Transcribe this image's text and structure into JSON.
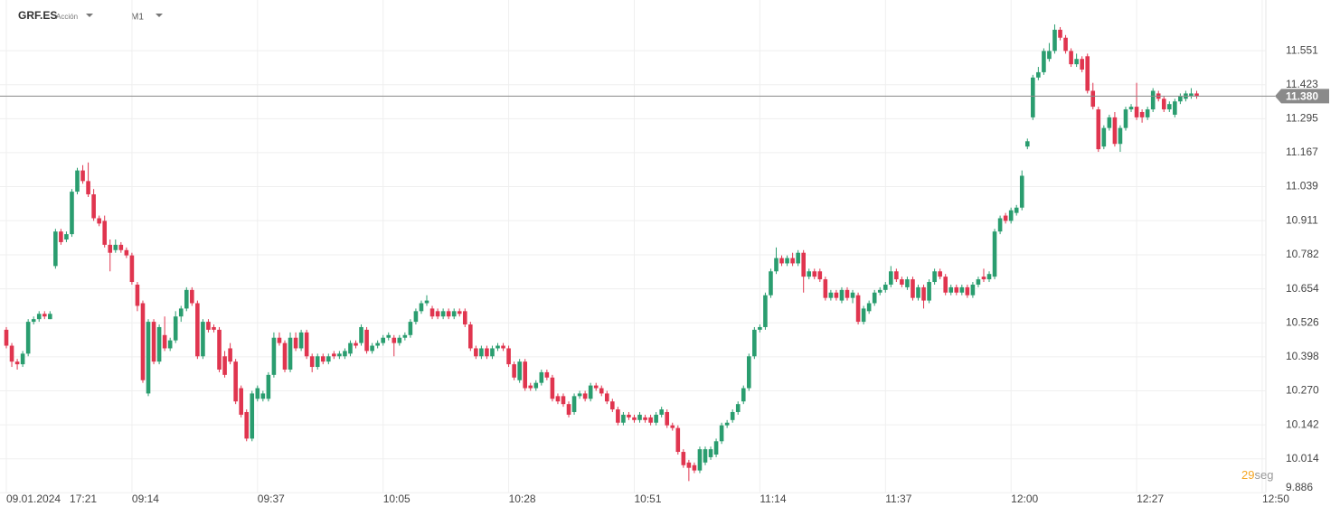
{
  "chart_data": {
    "type": "candlestick",
    "symbol": "GRF.ES",
    "instrument_type": "Acción",
    "timeframe": "M1",
    "up_color": "#2a9d6f",
    "down_color": "#e0354f",
    "grid": true,
    "ylim": [
      9.87,
      11.742
    ],
    "yticks": [
      11.551,
      11.423,
      11.295,
      11.167,
      11.039,
      10.911,
      10.782,
      10.654,
      10.526,
      10.398,
      {
        "value": 10.27,
        "label": "10.270"
      },
      10.142,
      10.014,
      9.886
    ],
    "xlim": [
      -1.16,
      231
    ],
    "xticks": [
      {
        "value": 0,
        "label": "09.01.2024   17:21"
      },
      {
        "value": 23,
        "label": "09:14"
      },
      {
        "value": 46,
        "label": "09:37"
      },
      {
        "value": 69,
        "label": "10:05"
      },
      {
        "value": 92,
        "label": "10:28"
      },
      {
        "value": 115,
        "label": "10:51"
      },
      {
        "value": 138,
        "label": "11:14"
      },
      {
        "value": 161,
        "label": "11:37"
      },
      {
        "value": 184,
        "label": "12:00"
      },
      {
        "value": 207,
        "label": "12:27"
      },
      {
        "value": 230,
        "label": "12:50"
      }
    ],
    "current_price": {
      "value": 11.38,
      "label": "11.380"
    },
    "timer": {
      "value": 29,
      "unit": "seg"
    },
    "candles": [
      [
        10.5,
        10.51,
        10.43,
        10.44
      ],
      [
        10.44,
        10.45,
        10.36,
        10.38
      ],
      [
        10.38,
        10.39,
        10.35,
        10.37
      ],
      [
        10.37,
        10.42,
        10.36,
        10.41
      ],
      [
        10.41,
        10.54,
        10.4,
        10.53
      ],
      [
        10.53,
        10.55,
        10.52,
        10.54
      ],
      [
        10.54,
        10.57,
        10.53,
        10.56
      ],
      [
        10.56,
        10.57,
        10.54,
        10.55
      ],
      [
        10.54,
        10.57,
        10.54,
        10.56
      ],
      [
        10.74,
        10.88,
        10.73,
        10.87
      ],
      [
        10.87,
        10.88,
        10.82,
        10.83
      ],
      [
        10.84,
        10.87,
        10.83,
        10.86
      ],
      [
        10.86,
        11.03,
        10.85,
        11.02
      ],
      [
        11.02,
        11.11,
        11.01,
        11.1
      ],
      [
        11.1,
        11.12,
        11.05,
        11.06
      ],
      [
        11.06,
        11.13,
        11.0,
        11.01
      ],
      [
        11.01,
        11.03,
        10.91,
        10.92
      ],
      [
        10.92,
        10.93,
        10.89,
        10.9
      ],
      [
        10.91,
        10.93,
        10.81,
        10.82
      ],
      [
        10.82,
        10.84,
        10.72,
        10.79
      ],
      [
        10.8,
        10.84,
        10.79,
        10.82
      ],
      [
        10.82,
        10.83,
        10.79,
        10.8
      ],
      [
        10.8,
        10.81,
        10.77,
        10.78
      ],
      [
        10.78,
        10.79,
        10.67,
        10.68
      ],
      [
        10.67,
        10.68,
        10.57,
        10.59
      ],
      [
        10.6,
        10.61,
        10.3,
        10.31
      ],
      [
        10.26,
        10.54,
        10.25,
        10.53
      ],
      [
        10.53,
        10.54,
        10.37,
        10.38
      ],
      [
        10.38,
        10.52,
        10.37,
        10.51
      ],
      [
        10.48,
        10.55,
        10.42,
        10.43
      ],
      [
        10.43,
        10.47,
        10.42,
        10.46
      ],
      [
        10.46,
        10.57,
        10.45,
        10.55
      ],
      [
        10.55,
        10.59,
        10.53,
        10.58
      ],
      [
        10.58,
        10.66,
        10.57,
        10.65
      ],
      [
        10.65,
        10.66,
        10.59,
        10.6
      ],
      [
        10.6,
        10.61,
        10.39,
        10.4
      ],
      [
        10.4,
        10.54,
        10.39,
        10.53
      ],
      [
        10.53,
        10.54,
        10.49,
        10.5
      ],
      [
        10.51,
        10.52,
        10.49,
        10.5
      ],
      [
        10.5,
        10.51,
        10.34,
        10.35
      ],
      [
        10.4,
        10.42,
        10.32,
        10.33
      ],
      [
        10.43,
        10.45,
        10.37,
        10.38
      ],
      [
        10.38,
        10.39,
        10.22,
        10.23
      ],
      [
        10.28,
        10.29,
        10.17,
        10.18
      ],
      [
        10.19,
        10.2,
        10.08,
        10.09
      ],
      [
        10.09,
        10.27,
        10.08,
        10.26
      ],
      [
        10.24,
        10.29,
        10.23,
        10.28
      ],
      [
        10.24,
        10.27,
        10.23,
        10.26
      ],
      [
        10.24,
        10.34,
        10.23,
        10.33
      ],
      [
        10.33,
        10.49,
        10.32,
        10.47
      ],
      [
        10.47,
        10.49,
        10.44,
        10.45
      ],
      [
        10.45,
        10.46,
        10.34,
        10.35
      ],
      [
        10.35,
        10.49,
        10.34,
        10.47
      ],
      [
        10.47,
        10.49,
        10.42,
        10.43
      ],
      [
        10.43,
        10.5,
        10.42,
        10.49
      ],
      [
        10.49,
        10.5,
        10.39,
        10.4
      ],
      [
        10.4,
        10.41,
        10.34,
        10.36
      ],
      [
        10.36,
        10.41,
        10.35,
        10.4
      ],
      [
        10.4,
        10.41,
        10.37,
        10.38
      ],
      [
        10.38,
        10.41,
        10.37,
        10.4
      ],
      [
        10.41,
        10.42,
        10.39,
        10.4
      ],
      [
        10.4,
        10.42,
        10.39,
        10.41
      ],
      [
        10.4,
        10.43,
        10.39,
        10.42
      ],
      [
        10.41,
        10.46,
        10.4,
        10.45
      ],
      [
        10.45,
        10.46,
        10.43,
        10.44
      ],
      [
        10.45,
        10.52,
        10.44,
        10.51
      ],
      [
        10.5,
        10.51,
        10.41,
        10.42
      ],
      [
        10.42,
        10.45,
        10.41,
        10.44
      ],
      [
        10.44,
        10.46,
        10.43,
        10.45
      ],
      [
        10.45,
        10.48,
        10.44,
        10.47
      ],
      [
        10.47,
        10.49,
        10.46,
        10.48
      ],
      [
        10.47,
        10.48,
        10.4,
        10.45
      ],
      [
        10.45,
        10.48,
        10.44,
        10.47
      ],
      [
        10.47,
        10.49,
        10.46,
        10.48
      ],
      [
        10.48,
        10.54,
        10.47,
        10.53
      ],
      [
        10.53,
        10.58,
        10.52,
        10.57
      ],
      [
        10.57,
        10.61,
        10.56,
        10.6
      ],
      [
        10.6,
        10.63,
        10.59,
        10.61
      ],
      [
        10.58,
        10.59,
        10.54,
        10.55
      ],
      [
        10.57,
        10.58,
        10.54,
        10.55
      ],
      [
        10.55,
        10.58,
        10.54,
        10.57
      ],
      [
        10.57,
        10.58,
        10.54,
        10.55
      ],
      [
        10.55,
        10.58,
        10.54,
        10.57
      ],
      [
        10.57,
        10.58,
        10.55,
        10.56
      ],
      [
        10.57,
        10.58,
        10.51,
        10.52
      ],
      [
        10.52,
        10.53,
        10.42,
        10.43
      ],
      [
        10.43,
        10.44,
        10.39,
        10.4
      ],
      [
        10.4,
        10.44,
        10.39,
        10.43
      ],
      [
        10.43,
        10.44,
        10.39,
        10.4
      ],
      [
        10.4,
        10.44,
        10.39,
        10.43
      ],
      [
        10.43,
        10.45,
        10.42,
        10.44
      ],
      [
        10.44,
        10.45,
        10.42,
        10.43
      ],
      [
        10.43,
        10.44,
        10.36,
        10.37
      ],
      [
        10.37,
        10.38,
        10.31,
        10.32
      ],
      [
        10.31,
        10.39,
        10.3,
        10.38
      ],
      [
        10.38,
        10.39,
        10.27,
        10.28
      ],
      [
        10.29,
        10.3,
        10.27,
        10.28
      ],
      [
        10.28,
        10.31,
        10.27,
        10.3
      ],
      [
        10.3,
        10.35,
        10.29,
        10.34
      ],
      [
        10.34,
        10.35,
        10.31,
        10.32
      ],
      [
        10.32,
        10.33,
        10.23,
        10.24
      ],
      [
        10.25,
        10.26,
        10.22,
        10.23
      ],
      [
        10.25,
        10.26,
        10.21,
        10.22
      ],
      [
        10.22,
        10.23,
        10.17,
        10.18
      ],
      [
        10.19,
        10.26,
        10.18,
        10.25
      ],
      [
        10.25,
        10.27,
        10.24,
        10.26
      ],
      [
        10.26,
        10.27,
        10.23,
        10.24
      ],
      [
        10.24,
        10.3,
        10.23,
        10.29
      ],
      [
        10.29,
        10.3,
        10.27,
        10.28
      ],
      [
        10.28,
        10.29,
        10.25,
        10.26
      ],
      [
        10.26,
        10.27,
        10.22,
        10.23
      ],
      [
        10.23,
        10.24,
        10.19,
        10.2
      ],
      [
        10.2,
        10.21,
        10.14,
        10.15
      ],
      [
        10.15,
        10.19,
        10.14,
        10.18
      ],
      [
        10.18,
        10.19,
        10.16,
        10.17
      ],
      [
        10.17,
        10.18,
        10.15,
        10.16
      ],
      [
        10.16,
        10.19,
        10.15,
        10.18
      ],
      [
        10.17,
        10.18,
        10.15,
        10.16
      ],
      [
        10.17,
        10.18,
        10.14,
        10.15
      ],
      [
        10.15,
        10.19,
        10.14,
        10.18
      ],
      [
        10.18,
        10.21,
        10.17,
        10.2
      ],
      [
        10.19,
        10.2,
        10.13,
        10.14
      ],
      [
        10.14,
        10.15,
        10.12,
        10.13
      ],
      [
        10.13,
        10.14,
        10.03,
        10.04
      ],
      [
        10.04,
        10.05,
        9.98,
        9.99
      ],
      [
        10.0,
        10.01,
        9.93,
        9.98
      ],
      [
        9.99,
        10.0,
        9.96,
        9.97
      ],
      [
        9.97,
        10.06,
        9.96,
        10.05
      ],
      [
        10.0,
        10.06,
        9.99,
        10.05
      ],
      [
        10.02,
        10.06,
        10.01,
        10.05
      ],
      [
        10.03,
        10.09,
        10.02,
        10.08
      ],
      [
        10.08,
        10.15,
        10.07,
        10.14
      ],
      [
        10.14,
        10.16,
        10.13,
        10.15
      ],
      [
        10.16,
        10.2,
        10.15,
        10.19
      ],
      [
        10.19,
        10.23,
        10.18,
        10.22
      ],
      [
        10.23,
        10.29,
        10.22,
        10.28
      ],
      [
        10.28,
        10.41,
        10.27,
        10.4
      ],
      [
        10.4,
        10.51,
        10.39,
        10.5
      ],
      [
        10.5,
        10.52,
        10.49,
        10.51
      ],
      [
        10.51,
        10.64,
        10.5,
        10.63
      ],
      [
        10.63,
        10.73,
        10.62,
        10.72
      ],
      [
        10.72,
        10.81,
        10.71,
        10.77
      ],
      [
        10.77,
        10.78,
        10.74,
        10.75
      ],
      [
        10.75,
        10.78,
        10.74,
        10.77
      ],
      [
        10.77,
        10.79,
        10.74,
        10.75
      ],
      [
        10.75,
        10.8,
        10.74,
        10.79
      ],
      [
        10.79,
        10.8,
        10.64,
        10.7
      ],
      [
        10.7,
        10.73,
        10.69,
        10.72
      ],
      [
        10.72,
        10.73,
        10.69,
        10.7
      ],
      [
        10.72,
        10.73,
        10.68,
        10.69
      ],
      [
        10.69,
        10.7,
        10.61,
        10.62
      ],
      [
        10.62,
        10.65,
        10.61,
        10.64
      ],
      [
        10.64,
        10.65,
        10.61,
        10.62
      ],
      [
        10.61,
        10.66,
        10.6,
        10.65
      ],
      [
        10.65,
        10.66,
        10.61,
        10.62
      ],
      [
        10.62,
        10.65,
        10.6,
        10.64
      ],
      [
        10.63,
        10.64,
        10.52,
        10.53
      ],
      [
        10.53,
        10.59,
        10.52,
        10.58
      ],
      [
        10.57,
        10.61,
        10.56,
        10.6
      ],
      [
        10.6,
        10.65,
        10.59,
        10.64
      ],
      [
        10.64,
        10.66,
        10.63,
        10.65
      ],
      [
        10.65,
        10.68,
        10.64,
        10.67
      ],
      [
        10.67,
        10.74,
        10.66,
        10.72
      ],
      [
        10.72,
        10.73,
        10.68,
        10.69
      ],
      [
        10.69,
        10.7,
        10.66,
        10.67
      ],
      [
        10.66,
        10.7,
        10.65,
        10.69
      ],
      [
        10.69,
        10.7,
        10.61,
        10.62
      ],
      [
        10.62,
        10.67,
        10.61,
        10.66
      ],
      [
        10.66,
        10.67,
        10.58,
        10.61
      ],
      [
        10.61,
        10.69,
        10.6,
        10.68
      ],
      [
        10.68,
        10.73,
        10.67,
        10.72
      ],
      [
        10.72,
        10.73,
        10.69,
        10.7
      ],
      [
        10.7,
        10.71,
        10.63,
        10.64
      ],
      [
        10.64,
        10.67,
        10.63,
        10.66
      ],
      [
        10.66,
        10.67,
        10.63,
        10.64
      ],
      [
        10.64,
        10.67,
        10.63,
        10.66
      ],
      [
        10.66,
        10.67,
        10.62,
        10.63
      ],
      [
        10.63,
        10.68,
        10.62,
        10.67
      ],
      [
        10.67,
        10.7,
        10.66,
        10.69
      ],
      [
        10.7,
        10.73,
        10.68,
        10.69
      ],
      [
        10.69,
        10.72,
        10.68,
        10.71
      ],
      [
        10.7,
        10.88,
        10.69,
        10.87
      ],
      [
        10.87,
        10.93,
        10.86,
        10.92
      ],
      [
        10.93,
        10.94,
        10.9,
        10.91
      ],
      [
        10.91,
        10.96,
        10.9,
        10.95
      ],
      [
        10.94,
        10.97,
        10.93,
        10.96
      ],
      [
        10.96,
        11.1,
        10.95,
        11.08
      ],
      [
        11.19,
        11.22,
        11.18,
        11.21
      ],
      [
        11.3,
        11.46,
        11.29,
        11.45
      ],
      [
        11.45,
        11.49,
        11.44,
        11.47
      ],
      [
        11.47,
        11.56,
        11.46,
        11.55
      ],
      [
        11.52,
        11.58,
        11.51,
        11.55
      ],
      [
        11.55,
        11.65,
        11.54,
        11.63
      ],
      [
        11.63,
        11.64,
        11.59,
        11.6
      ],
      [
        11.6,
        11.61,
        11.54,
        11.55
      ],
      [
        11.55,
        11.56,
        11.49,
        11.5
      ],
      [
        11.5,
        11.54,
        11.49,
        11.52
      ],
      [
        11.52,
        11.53,
        11.47,
        11.48
      ],
      [
        11.53,
        11.54,
        11.39,
        11.4
      ],
      [
        11.4,
        11.43,
        11.33,
        11.34
      ],
      [
        11.33,
        11.34,
        11.17,
        11.18
      ],
      [
        11.19,
        11.27,
        11.18,
        11.26
      ],
      [
        11.26,
        11.31,
        11.25,
        11.3
      ],
      [
        11.3,
        11.32,
        11.19,
        11.2
      ],
      [
        11.2,
        11.27,
        11.17,
        11.26
      ],
      [
        11.26,
        11.34,
        11.25,
        11.33
      ],
      [
        11.33,
        11.35,
        11.32,
        11.34
      ],
      [
        11.34,
        11.43,
        11.29,
        11.3
      ],
      [
        11.32,
        11.33,
        11.28,
        11.3
      ],
      [
        11.3,
        11.34,
        11.29,
        11.33
      ],
      [
        11.33,
        11.41,
        11.32,
        11.4
      ],
      [
        11.39,
        11.4,
        11.36,
        11.37
      ],
      [
        11.37,
        11.38,
        11.32,
        11.33
      ],
      [
        11.33,
        11.36,
        11.32,
        11.35
      ],
      [
        11.31,
        11.37,
        11.3,
        11.36
      ],
      [
        11.36,
        11.39,
        11.35,
        11.38
      ],
      [
        11.37,
        11.4,
        11.36,
        11.39
      ],
      [
        11.38,
        11.41,
        11.37,
        11.39
      ],
      [
        11.39,
        11.4,
        11.37,
        11.38
      ]
    ]
  }
}
